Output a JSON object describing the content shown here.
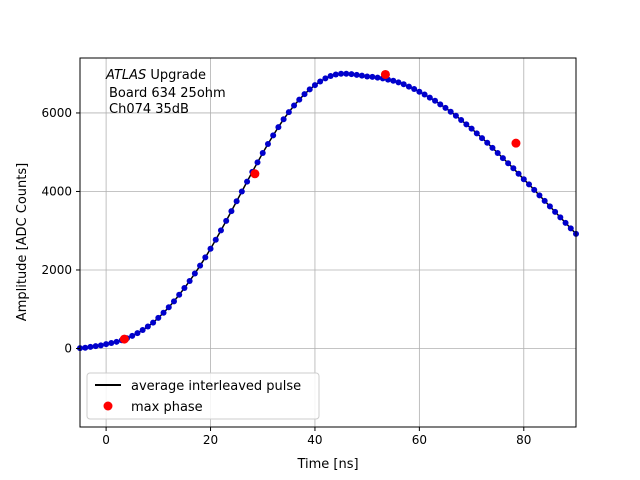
{
  "chart_data": {
    "type": "scatter",
    "title": "",
    "xlabel": "Time [ns]",
    "ylabel": "Amplitude [ADC Counts]",
    "xlim": [
      -5,
      90
    ],
    "ylim": [
      -2000,
      7400
    ],
    "xticks": [
      0,
      20,
      40,
      60,
      80
    ],
    "yticks": [
      0,
      2000,
      4000,
      6000
    ],
    "grid": true,
    "annotation": {
      "line1_italic": "ATLAS",
      "line1_rest": " Upgrade",
      "line2": "Board 634 25ohm",
      "line3": "Ch074 35dB"
    },
    "legend": {
      "placement": "lower-left",
      "entries": [
        {
          "label": "average interleaved pulse",
          "marker": "line",
          "color": "#000000"
        },
        {
          "label": "max phase",
          "marker": "circle",
          "color": "#ff0000"
        }
      ]
    },
    "series": [
      {
        "name": "average interleaved pulse",
        "color": "#0000cc",
        "x": [
          -5,
          -4,
          -3,
          -2,
          -1,
          0,
          1,
          2,
          3,
          4,
          5,
          6,
          7,
          8,
          9,
          10,
          11,
          12,
          13,
          14,
          15,
          16,
          17,
          18,
          19,
          20,
          21,
          22,
          23,
          24,
          25,
          26,
          27,
          28,
          29,
          30,
          31,
          32,
          33,
          34,
          35,
          36,
          37,
          38,
          39,
          40,
          41,
          42,
          43,
          44,
          45,
          46,
          47,
          48,
          49,
          50,
          51,
          52,
          53,
          54,
          55,
          56,
          57,
          58,
          59,
          60,
          61,
          62,
          63,
          64,
          65,
          66,
          67,
          68,
          69,
          70,
          71,
          72,
          73,
          74,
          75,
          76,
          77,
          78,
          79,
          80,
          81,
          82,
          83,
          84,
          85,
          86,
          87,
          88,
          89,
          90
        ],
        "y": [
          10,
          20,
          40,
          60,
          80,
          110,
          140,
          170,
          210,
          260,
          320,
          390,
          470,
          560,
          660,
          780,
          910,
          1050,
          1200,
          1370,
          1540,
          1720,
          1910,
          2110,
          2320,
          2540,
          2770,
          3010,
          3250,
          3500,
          3750,
          4000,
          4250,
          4500,
          4740,
          4980,
          5210,
          5430,
          5640,
          5840,
          6020,
          6190,
          6340,
          6480,
          6600,
          6710,
          6800,
          6880,
          6940,
          6980,
          7000,
          7000,
          6990,
          6970,
          6950,
          6930,
          6920,
          6900,
          6880,
          6850,
          6820,
          6780,
          6730,
          6670,
          6610,
          6540,
          6470,
          6390,
          6310,
          6220,
          6130,
          6030,
          5930,
          5820,
          5710,
          5600,
          5480,
          5360,
          5240,
          5110,
          4980,
          4850,
          4720,
          4590,
          4450,
          4310,
          4180,
          4040,
          3900,
          3760,
          3620,
          3480,
          3340,
          3200,
          3060,
          2920
        ]
      },
      {
        "name": "max phase",
        "color": "#ff0000",
        "x": [
          3.5,
          28.5,
          53.5,
          78.5
        ],
        "y": [
          240,
          4450,
          6980,
          5230
        ]
      }
    ]
  }
}
